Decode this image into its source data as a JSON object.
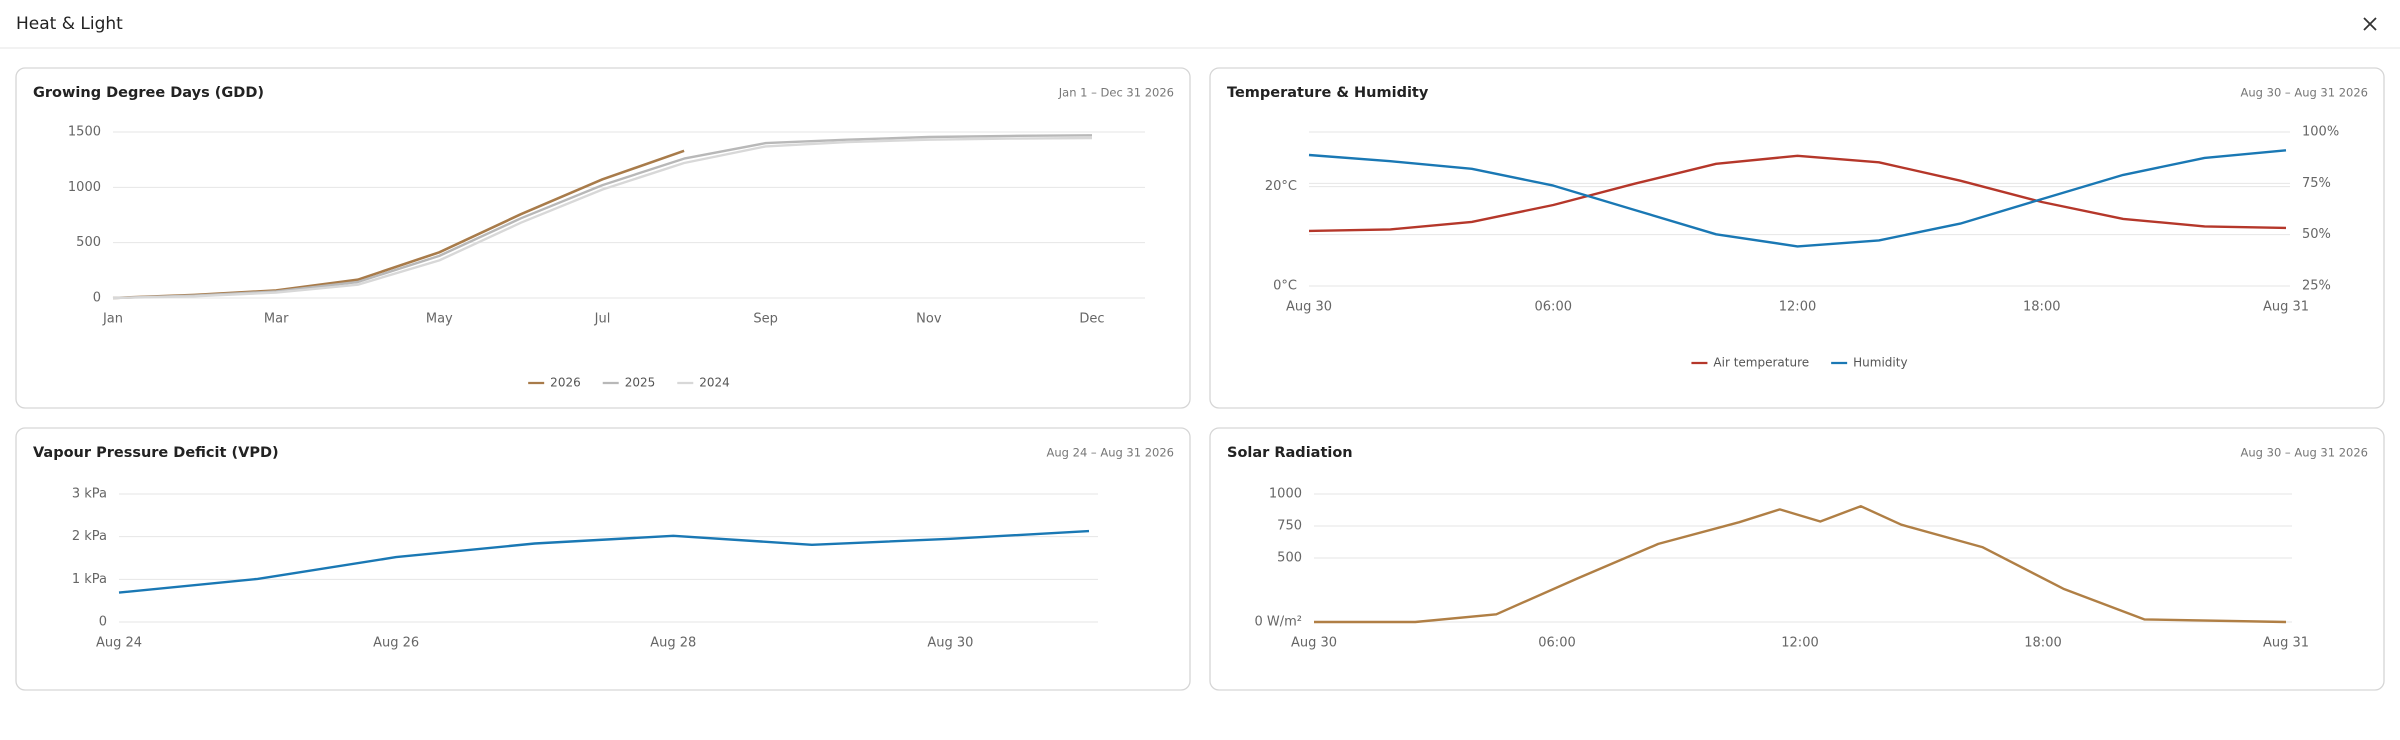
{
  "header": {
    "title": "Heat & Light"
  },
  "chart_data": [
    {
      "type": "line",
      "title": "Growing Degree Days (GDD)",
      "subtitle": "Jan 1 – Dec 31 2026",
      "x": [
        0,
        0.5,
        1,
        1.5,
        2,
        2.5,
        3,
        3.5,
        4,
        4.5,
        5,
        5.5,
        6
      ],
      "xlim": [
        0,
        6
      ],
      "xticks": [
        {
          "value": 0,
          "label": "Jan"
        },
        {
          "value": 1,
          "label": "Mar"
        },
        {
          "value": 2,
          "label": "May"
        },
        {
          "value": 3,
          "label": "Jul"
        },
        {
          "value": 4,
          "label": "Sep"
        },
        {
          "value": 5,
          "label": "Nov"
        },
        {
          "value": 6,
          "label": "Dec"
        }
      ],
      "ylim": [
        0,
        1500
      ],
      "yticks": [
        0,
        500,
        1000,
        1500
      ],
      "grid": true,
      "legend": "bottom",
      "series": [
        {
          "name": "2026",
          "color": "#a87b4a",
          "values": [
            0,
            28,
            69,
            165,
            413,
            757,
            1073,
            1330,
            null,
            null,
            null,
            null,
            null
          ]
        },
        {
          "name": "2025",
          "color": "#b8b8b8",
          "values": [
            0,
            22,
            60,
            145,
            380,
            720,
            1020,
            1260,
            1400,
            1430,
            1455,
            1465,
            1470
          ]
        },
        {
          "name": "2024",
          "color": "#d8d8d8",
          "values": [
            0,
            15,
            50,
            120,
            340,
            680,
            980,
            1220,
            1370,
            1410,
            1430,
            1440,
            1445
          ]
        }
      ]
    },
    {
      "type": "line",
      "title": "Temperature & Humidity",
      "subtitle": "Aug 30 – Aug 31 2026",
      "x": [
        0,
        2,
        4,
        6,
        8,
        10,
        12,
        14,
        16,
        18,
        20,
        22,
        24
      ],
      "xlim": [
        0,
        24
      ],
      "xticks": [
        {
          "value": 0,
          "label": "Aug 30"
        },
        {
          "value": 6,
          "label": "06:00"
        },
        {
          "value": 12,
          "label": "12:00"
        },
        {
          "value": 18,
          "label": "18:00"
        },
        {
          "value": 24,
          "label": "Aug 31"
        }
      ],
      "ylim": [
        0,
        31
      ],
      "yticks": [
        {
          "value": 0,
          "label": "0°C"
        },
        {
          "value": 20,
          "label": "20°C"
        }
      ],
      "y2lim": [
        25,
        100
      ],
      "y2ticks": [
        {
          "value": 25,
          "label": "25%"
        },
        {
          "value": 50,
          "label": "50%"
        },
        {
          "value": 75,
          "label": "75%"
        },
        {
          "value": 100,
          "label": "100%"
        }
      ],
      "grid": true,
      "legend": "bottom",
      "series": [
        {
          "name": "Air temperature",
          "color": "#b5372a",
          "values": [
            11.1,
            11.4,
            12.9,
            16.3,
            20.6,
            24.6,
            26.2,
            24.9,
            21.2,
            16.9,
            13.5,
            12.0,
            11.7
          ]
        },
        {
          "name": "Humidity",
          "color": "#1a78b4",
          "axis": "y2",
          "values": [
            88.8,
            85.8,
            82.1,
            73.9,
            62.0,
            50.2,
            44.3,
            47.2,
            55.4,
            67.3,
            79.1,
            87.4,
            91.1
          ]
        }
      ]
    },
    {
      "type": "line",
      "title": "Vapour Pressure Deficit (VPD)",
      "subtitle": "Aug 24 – Aug 31 2026",
      "x": [
        0,
        1,
        2,
        3,
        4,
        5,
        6,
        7
      ],
      "xlim": [
        0,
        7
      ],
      "xticks": [
        {
          "value": 0,
          "label": "Aug 24"
        },
        {
          "value": 2,
          "label": "Aug 26"
        },
        {
          "value": 4,
          "label": "Aug 28"
        },
        {
          "value": 6,
          "label": "Aug 30"
        }
      ],
      "ylim": [
        0,
        3
      ],
      "yticks": [
        0,
        {
          "value": 1,
          "label": "1 kPa"
        },
        {
          "value": 2,
          "label": "2 kPa"
        },
        {
          "value": 3,
          "label": "3 kPa"
        }
      ],
      "grid": true,
      "series": [
        {
          "color": "#1a78b4",
          "values": [
            0.69,
            1.01,
            1.52,
            1.84,
            2.02,
            1.81,
            1.95,
            2.13
          ]
        }
      ]
    },
    {
      "type": "line",
      "title": "Solar Radiation",
      "subtitle": "Aug 30 – Aug 31 2026",
      "x": [
        0,
        2.5,
        4.5,
        6.5,
        8.5,
        10.5,
        11.5,
        12.5,
        13.5,
        14.5,
        16.5,
        18.5,
        20.5,
        24
      ],
      "xlim": [
        0,
        24
      ],
      "xticks": [
        {
          "value": 0,
          "label": "Aug 30"
        },
        {
          "value": 6,
          "label": "06:00"
        },
        {
          "value": 12,
          "label": "12:00"
        },
        {
          "value": 18,
          "label": "18:00"
        },
        {
          "value": 24,
          "label": "Aug 31"
        }
      ],
      "ylim": [
        0,
        1000
      ],
      "yticks": [
        {
          "value": 0,
          "label": "0 W/m²"
        },
        500,
        750,
        1000
      ],
      "grid": true,
      "series": [
        {
          "color": "#b07f45",
          "values": [
            0,
            0,
            60,
            340,
            610,
            780,
            880,
            785,
            905,
            760,
            585,
            260,
            20,
            0
          ]
        }
      ]
    }
  ]
}
